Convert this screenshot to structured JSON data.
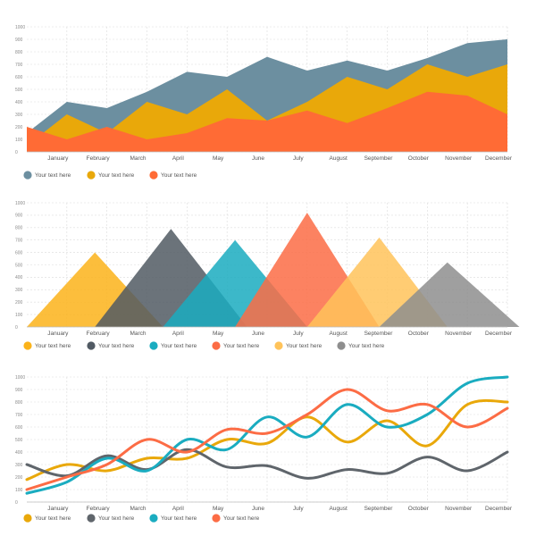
{
  "colors": {
    "orange": "#FF6B35",
    "yellow": "#E9A80A",
    "slate": "#6C8FA0",
    "amber": "#FBB31A",
    "charcoal": "#515A63",
    "teal": "#1AACC0",
    "coral": "#FC6C45",
    "light_amber": "#FFC35A",
    "gray": "#8E8E8E",
    "dark_gray": "#5F656B"
  },
  "chart_data": [
    {
      "type": "area",
      "stacked": false,
      "categories": [
        "",
        "January",
        "February",
        "March",
        "April",
        "May",
        "June",
        "July",
        "August",
        "September",
        "October",
        "November",
        "December"
      ],
      "y_ticks": [
        0,
        100,
        200,
        300,
        400,
        500,
        600,
        700,
        800,
        900,
        1000
      ],
      "ylim": [
        0,
        1000
      ],
      "grid": true,
      "legend_position": "bottom-left",
      "series": [
        {
          "name": "Your text here",
          "color": "#6C8FA0",
          "values": [
            150,
            400,
            350,
            480,
            640,
            600,
            760,
            650,
            730,
            650,
            750,
            870,
            900
          ]
        },
        {
          "name": "Your text here",
          "color": "#E9A80A",
          "values": [
            50,
            300,
            150,
            400,
            300,
            500,
            250,
            400,
            600,
            500,
            700,
            600,
            700
          ]
        },
        {
          "name": "Your text here",
          "color": "#FF6B35",
          "values": [
            200,
            100,
            200,
            100,
            150,
            270,
            250,
            330,
            230,
            350,
            480,
            450,
            300
          ]
        }
      ]
    },
    {
      "type": "area",
      "shape": "triangle",
      "categories": [
        "",
        "January",
        "February",
        "March",
        "April",
        "May",
        "June",
        "July",
        "August",
        "September",
        "October",
        "November",
        "December"
      ],
      "y_ticks": [
        0,
        100,
        200,
        300,
        400,
        500,
        600,
        700,
        800,
        900,
        1000
      ],
      "ylim": [
        0,
        1000
      ],
      "grid": true,
      "legend_position": "bottom-left",
      "series": [
        {
          "name": "Your text here",
          "color": "#FBB31A",
          "start": 0,
          "peak_x": 1.7,
          "end": 3.4,
          "peak": 600
        },
        {
          "name": "Your text here",
          "color": "#515A63",
          "start": 1.7,
          "peak_x": 3.6,
          "end": 5.5,
          "peak": 790
        },
        {
          "name": "Your text here",
          "color": "#1AACC0",
          "start": 3.4,
          "peak_x": 5.2,
          "end": 7.0,
          "peak": 700
        },
        {
          "name": "Your text here",
          "color": "#FC6C45",
          "start": 5.2,
          "peak_x": 7.0,
          "end": 8.8,
          "peak": 920
        },
        {
          "name": "Your text here",
          "color": "#FFC35A",
          "start": 7.0,
          "peak_x": 8.8,
          "end": 10.5,
          "peak": 720
        },
        {
          "name": "Your text here",
          "color": "#8E8E8E",
          "start": 8.8,
          "peak_x": 10.5,
          "end": 12.3,
          "peak": 520
        }
      ]
    },
    {
      "type": "line",
      "smooth": true,
      "categories": [
        "",
        "January",
        "February",
        "March",
        "April",
        "May",
        "June",
        "July",
        "August",
        "September",
        "October",
        "November",
        "December"
      ],
      "y_ticks": [
        0,
        100,
        200,
        300,
        400,
        500,
        600,
        700,
        800,
        900,
        1000
      ],
      "ylim": [
        0,
        1000
      ],
      "grid": true,
      "legend_position": "bottom-left",
      "series": [
        {
          "name": "Your text here",
          "color": "#E9A80A",
          "values": [
            180,
            300,
            250,
            350,
            350,
            500,
            470,
            680,
            480,
            650,
            450,
            780,
            800
          ]
        },
        {
          "name": "Your text here",
          "color": "#5F656B",
          "values": [
            300,
            210,
            370,
            260,
            420,
            280,
            290,
            190,
            260,
            230,
            360,
            250,
            400
          ]
        },
        {
          "name": "Your text here",
          "color": "#1AACC0",
          "values": [
            70,
            160,
            350,
            250,
            500,
            420,
            680,
            520,
            780,
            600,
            700,
            950,
            1000
          ]
        },
        {
          "name": "Your text here",
          "color": "#FC6C45",
          "values": [
            100,
            200,
            300,
            500,
            400,
            580,
            550,
            700,
            900,
            730,
            780,
            600,
            750
          ]
        }
      ]
    }
  ]
}
